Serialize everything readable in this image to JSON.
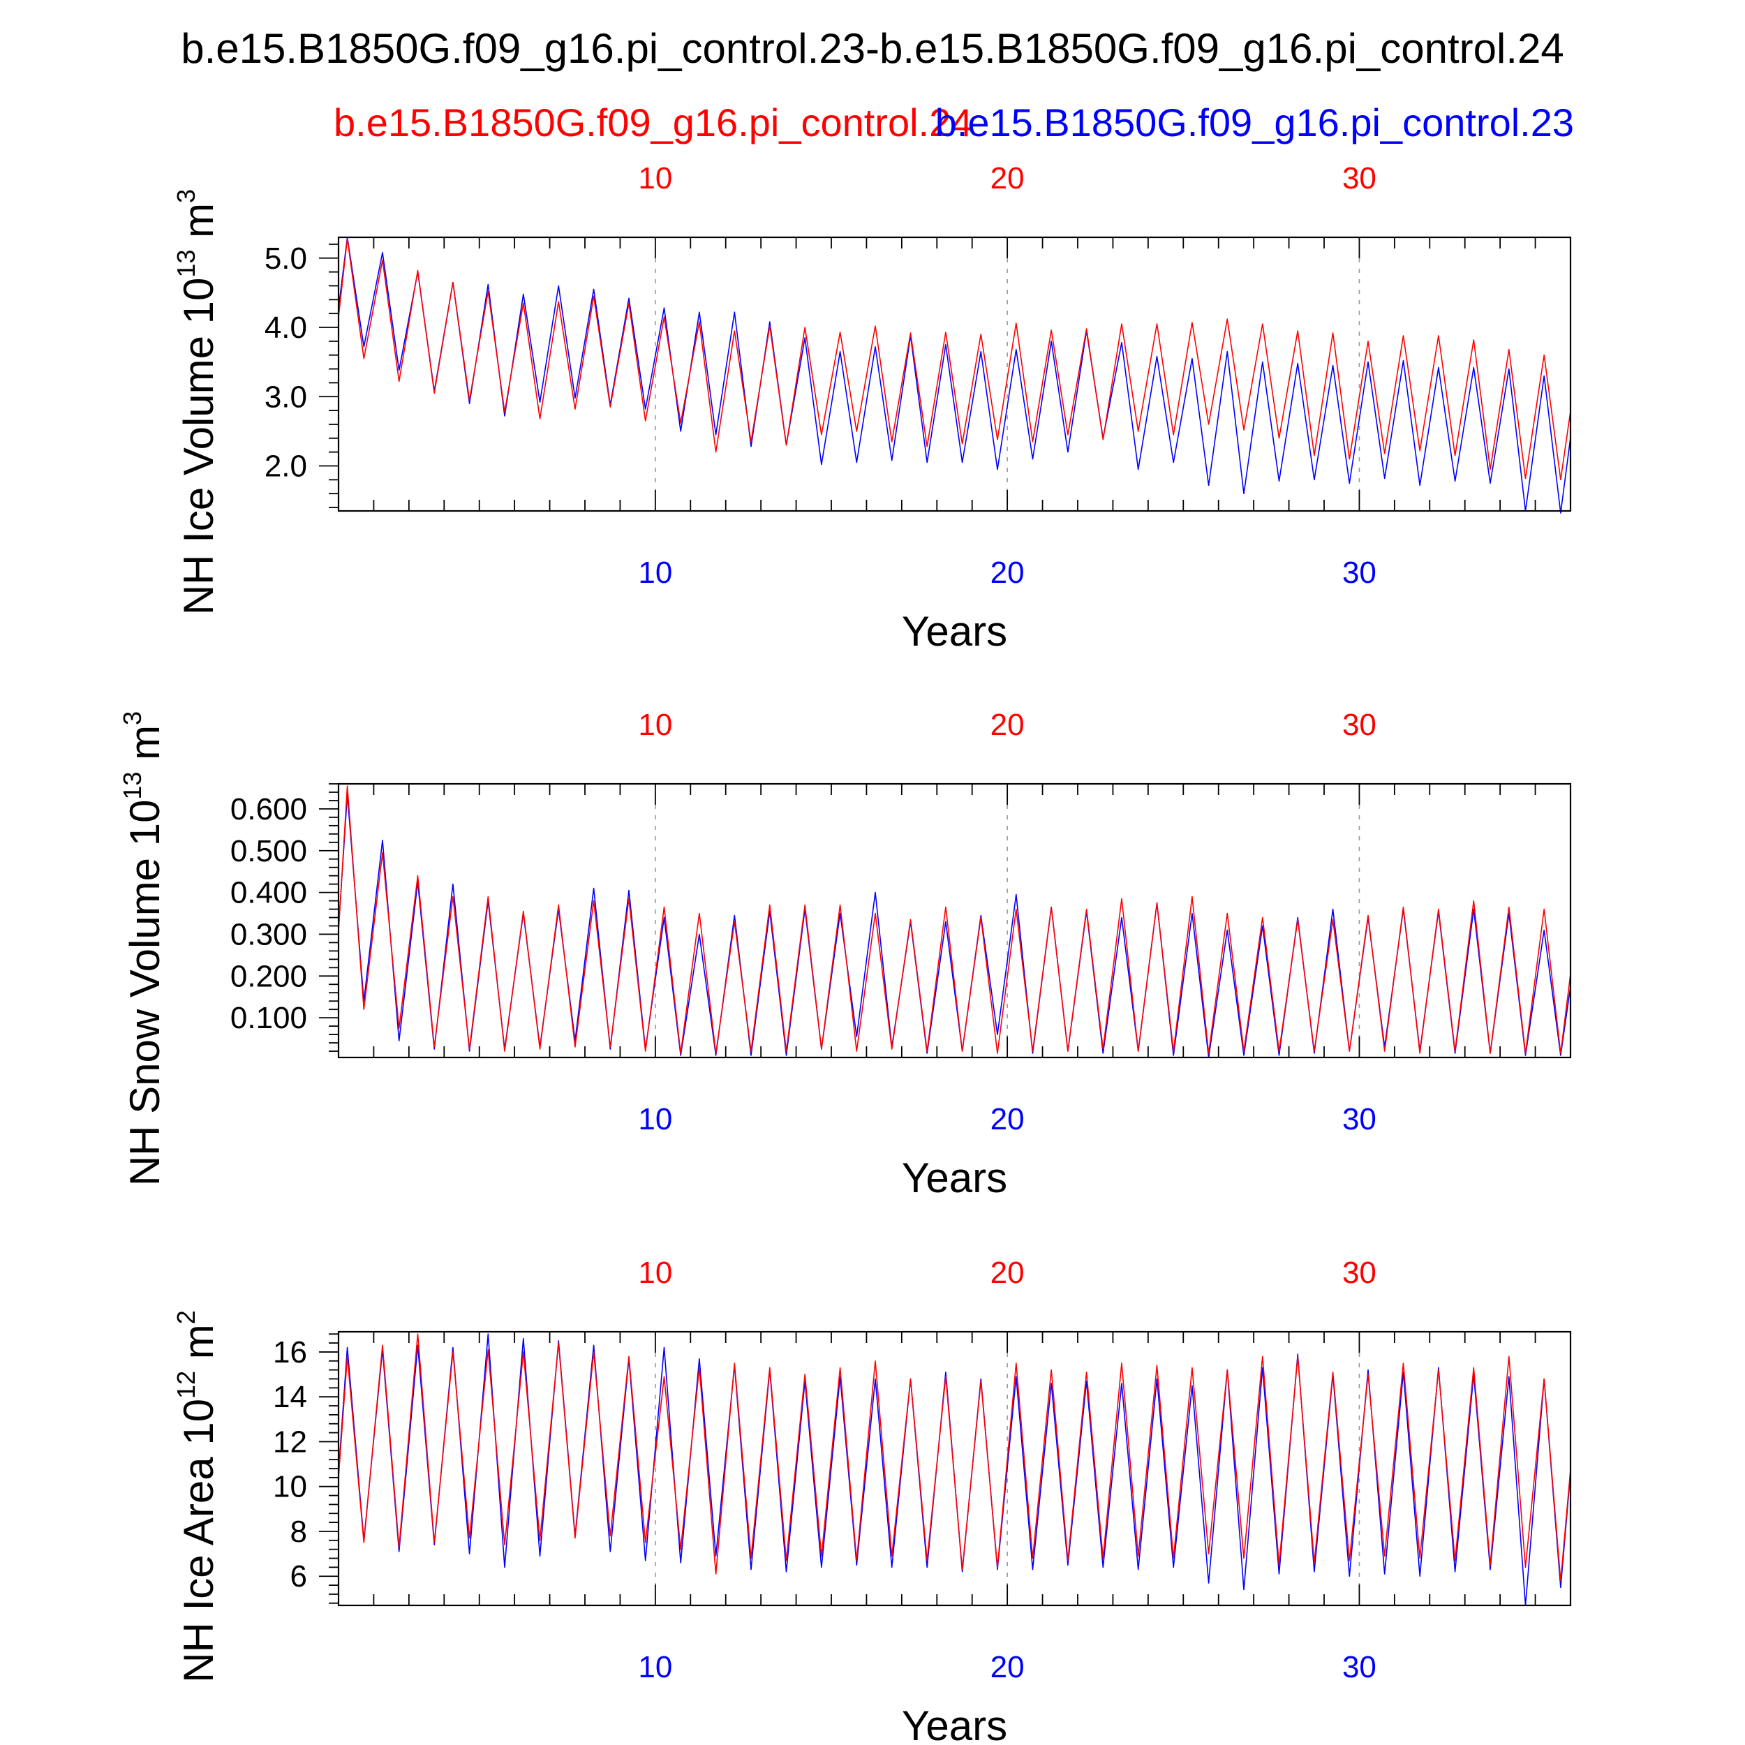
{
  "title": "b.e15.B1850G.f09_g16.pi_control.23-b.e15.B1850G.f09_g16.pi_control.24",
  "legend": {
    "red_label": "b.e15.B1850G.f09_g16.pi_control.24",
    "blue_label": "b.e15.B1850G.f09_g16.pi_control.23",
    "red_color": "#ff0000",
    "blue_color": "#0000ff"
  },
  "chart_data": [
    {
      "type": "line",
      "id": "ice_volume",
      "ylabel_main": "NH Ice Volume 10",
      "ylabel_exp": "13",
      "ylabel_unit": " m",
      "ylabel_unit_exp": "3",
      "xlabel": "Years",
      "xlim": [
        1,
        36
      ],
      "ylim": [
        1.35,
        5.3
      ],
      "yticks": [
        2.0,
        3.0,
        4.0,
        5.0
      ],
      "ytick_labels": [
        "2.0",
        "3.0",
        "4.0",
        "5.0"
      ],
      "xticks": [
        10,
        20,
        30
      ],
      "xtick_labels": [
        "10",
        "20",
        "30"
      ],
      "series": [
        {
          "name": "b.e15.B1850G.f09_g16.pi_control.24",
          "color": "#ff0000",
          "peaks": [
            5.28,
            4.97,
            4.82,
            4.65,
            4.52,
            4.35,
            4.37,
            4.45,
            4.35,
            4.15,
            4.08,
            3.95,
            4.02,
            4.0,
            3.93,
            4.02,
            3.92,
            3.93,
            3.9,
            4.06,
            3.96,
            3.98,
            4.05,
            4.05,
            4.07,
            4.12,
            4.05,
            3.95,
            3.92,
            3.8,
            3.88,
            3.88,
            3.82,
            3.68,
            3.6
          ],
          "troughs": [
            3.55,
            3.22,
            3.05,
            2.95,
            2.78,
            2.68,
            2.82,
            2.85,
            2.65,
            2.62,
            2.2,
            2.35,
            2.3,
            2.45,
            2.5,
            2.35,
            2.28,
            2.32,
            2.38,
            2.35,
            2.45,
            2.38,
            2.5,
            2.45,
            2.6,
            2.52,
            2.4,
            2.15,
            2.1,
            2.18,
            2.22,
            2.15,
            1.95,
            1.82,
            1.8
          ]
        },
        {
          "name": "b.e15.B1850G.f09_g16.pi_control.23",
          "color": "#0000ff",
          "peaks": [
            5.3,
            5.08,
            4.8,
            4.65,
            4.62,
            4.48,
            4.6,
            4.55,
            4.42,
            4.28,
            4.22,
            4.22,
            4.08,
            3.85,
            3.65,
            3.72,
            3.88,
            3.75,
            3.65,
            3.68,
            3.8,
            3.95,
            3.78,
            3.58,
            3.55,
            3.65,
            3.5,
            3.48,
            3.45,
            3.5,
            3.52,
            3.42,
            3.42,
            3.4,
            3.3
          ],
          "troughs": [
            3.72,
            3.38,
            3.08,
            2.9,
            2.72,
            2.92,
            2.98,
            2.88,
            2.82,
            2.5,
            2.45,
            2.28,
            2.3,
            2.02,
            2.05,
            2.08,
            2.05,
            2.05,
            1.95,
            2.1,
            2.2,
            2.4,
            1.95,
            2.05,
            1.72,
            1.6,
            1.78,
            1.8,
            1.75,
            1.82,
            1.72,
            1.78,
            1.75,
            1.35,
            1.32
          ]
        }
      ]
    },
    {
      "type": "line",
      "id": "snow_volume",
      "ylabel_main": "NH Snow Volume 10",
      "ylabel_exp": "13",
      "ylabel_unit": " m",
      "ylabel_unit_exp": "3",
      "xlabel": "Years",
      "xlim": [
        1,
        36
      ],
      "ylim": [
        0.005,
        0.66
      ],
      "yticks": [
        0.1,
        0.2,
        0.3,
        0.4,
        0.5,
        0.6
      ],
      "ytick_labels": [
        "0.100",
        "0.200",
        "0.300",
        "0.400",
        "0.500",
        "0.600"
      ],
      "xticks": [
        10,
        20,
        30
      ],
      "xtick_labels": [
        "10",
        "20",
        "30"
      ],
      "series": [
        {
          "name": "b.e15.B1850G.f09_g16.pi_control.24",
          "color": "#ff0000",
          "peaks": [
            0.655,
            0.495,
            0.44,
            0.39,
            0.39,
            0.355,
            0.37,
            0.38,
            0.385,
            0.365,
            0.35,
            0.33,
            0.37,
            0.37,
            0.37,
            0.35,
            0.335,
            0.365,
            0.34,
            0.36,
            0.365,
            0.36,
            0.385,
            0.375,
            0.39,
            0.35,
            0.34,
            0.335,
            0.335,
            0.345,
            0.365,
            0.36,
            0.38,
            0.365,
            0.36
          ],
          "troughs": [
            0.12,
            0.075,
            0.03,
            0.025,
            0.02,
            0.025,
            0.03,
            0.03,
            0.02,
            0.015,
            0.015,
            0.02,
            0.02,
            0.025,
            0.02,
            0.025,
            0.02,
            0.02,
            0.015,
            0.02,
            0.02,
            0.025,
            0.02,
            0.02,
            0.015,
            0.02,
            0.02,
            0.02,
            0.02,
            0.02,
            0.015,
            0.02,
            0.015,
            0.015,
            0.015
          ]
        },
        {
          "name": "b.e15.B1850G.f09_g16.pi_control.23",
          "color": "#0000ff",
          "peaks": [
            0.635,
            0.525,
            0.425,
            0.42,
            0.38,
            0.35,
            0.36,
            0.41,
            0.405,
            0.34,
            0.3,
            0.345,
            0.355,
            0.36,
            0.35,
            0.4,
            0.33,
            0.33,
            0.345,
            0.395,
            0.365,
            0.355,
            0.34,
            0.375,
            0.35,
            0.31,
            0.32,
            0.34,
            0.36,
            0.34,
            0.36,
            0.355,
            0.36,
            0.35,
            0.31
          ],
          "troughs": [
            0.14,
            0.045,
            0.025,
            0.02,
            0.025,
            0.03,
            0.045,
            0.025,
            0.025,
            0.01,
            0.01,
            0.01,
            0.01,
            0.025,
            0.055,
            0.03,
            0.015,
            0.02,
            0.06,
            0.015,
            0.02,
            0.015,
            0.02,
            0.01,
            0.005,
            0.01,
            0.01,
            0.015,
            0.02,
            0.03,
            0.02,
            0.015,
            0.015,
            0.01,
            0.01
          ]
        }
      ]
    },
    {
      "type": "line",
      "id": "ice_area",
      "ylabel_main": "NH Ice Area 10",
      "ylabel_exp": "12",
      "ylabel_unit": " m",
      "ylabel_unit_exp": "2",
      "xlabel": "Years",
      "xlim": [
        1,
        36
      ],
      "ylim": [
        4.7,
        16.9
      ],
      "yticks": [
        6,
        8,
        10,
        12,
        14,
        16
      ],
      "ytick_labels": [
        "6",
        "8",
        "10",
        "12",
        "14",
        "16"
      ],
      "xticks": [
        10,
        20,
        30
      ],
      "xtick_labels": [
        "10",
        "20",
        "30"
      ],
      "series": [
        {
          "name": "b.e15.B1850G.f09_g16.pi_control.24",
          "color": "#ff0000",
          "peaks": [
            15.8,
            16.3,
            16.8,
            16.0,
            16.1,
            16.0,
            16.4,
            16.0,
            15.8,
            14.9,
            15.3,
            15.5,
            15.3,
            15.0,
            15.3,
            15.6,
            14.8,
            14.9,
            14.7,
            15.5,
            15.2,
            15.1,
            15.5,
            15.4,
            15.3,
            15.2,
            15.8,
            15.8,
            15.1,
            15.0,
            15.5,
            15.2,
            15.3,
            15.8,
            14.8
          ],
          "troughs": [
            7.5,
            7.3,
            7.5,
            7.7,
            7.4,
            7.6,
            7.7,
            7.8,
            7.5,
            7.2,
            6.1,
            6.8,
            6.7,
            6.9,
            6.7,
            6.9,
            6.7,
            6.3,
            6.4,
            6.8,
            6.7,
            6.8,
            6.9,
            6.8,
            7.0,
            6.8,
            6.5,
            6.6,
            6.7,
            6.9,
            6.8,
            6.7,
            6.5,
            6.4,
            5.8
          ]
        },
        {
          "name": "b.e15.B1850G.f09_g16.pi_control.23",
          "color": "#0000ff",
          "peaks": [
            16.2,
            16.1,
            16.3,
            16.2,
            16.8,
            16.6,
            16.5,
            16.3,
            15.7,
            16.2,
            15.7,
            15.4,
            15.2,
            14.7,
            14.9,
            14.8,
            14.8,
            15.1,
            14.8,
            14.9,
            14.6,
            14.7,
            14.6,
            14.8,
            14.5,
            15.2,
            15.3,
            15.9,
            15.0,
            15.2,
            15.1,
            15.3,
            15.0,
            14.9,
            14.8
          ],
          "troughs": [
            7.6,
            7.1,
            7.4,
            7.0,
            6.4,
            6.9,
            7.8,
            7.1,
            6.7,
            6.6,
            6.9,
            6.3,
            6.2,
            6.4,
            6.5,
            6.4,
            6.4,
            6.2,
            6.3,
            6.3,
            6.5,
            6.4,
            6.3,
            6.4,
            5.7,
            5.4,
            6.1,
            6.2,
            6.0,
            6.1,
            6.0,
            6.2,
            6.3,
            4.7,
            5.5
          ]
        }
      ]
    }
  ]
}
